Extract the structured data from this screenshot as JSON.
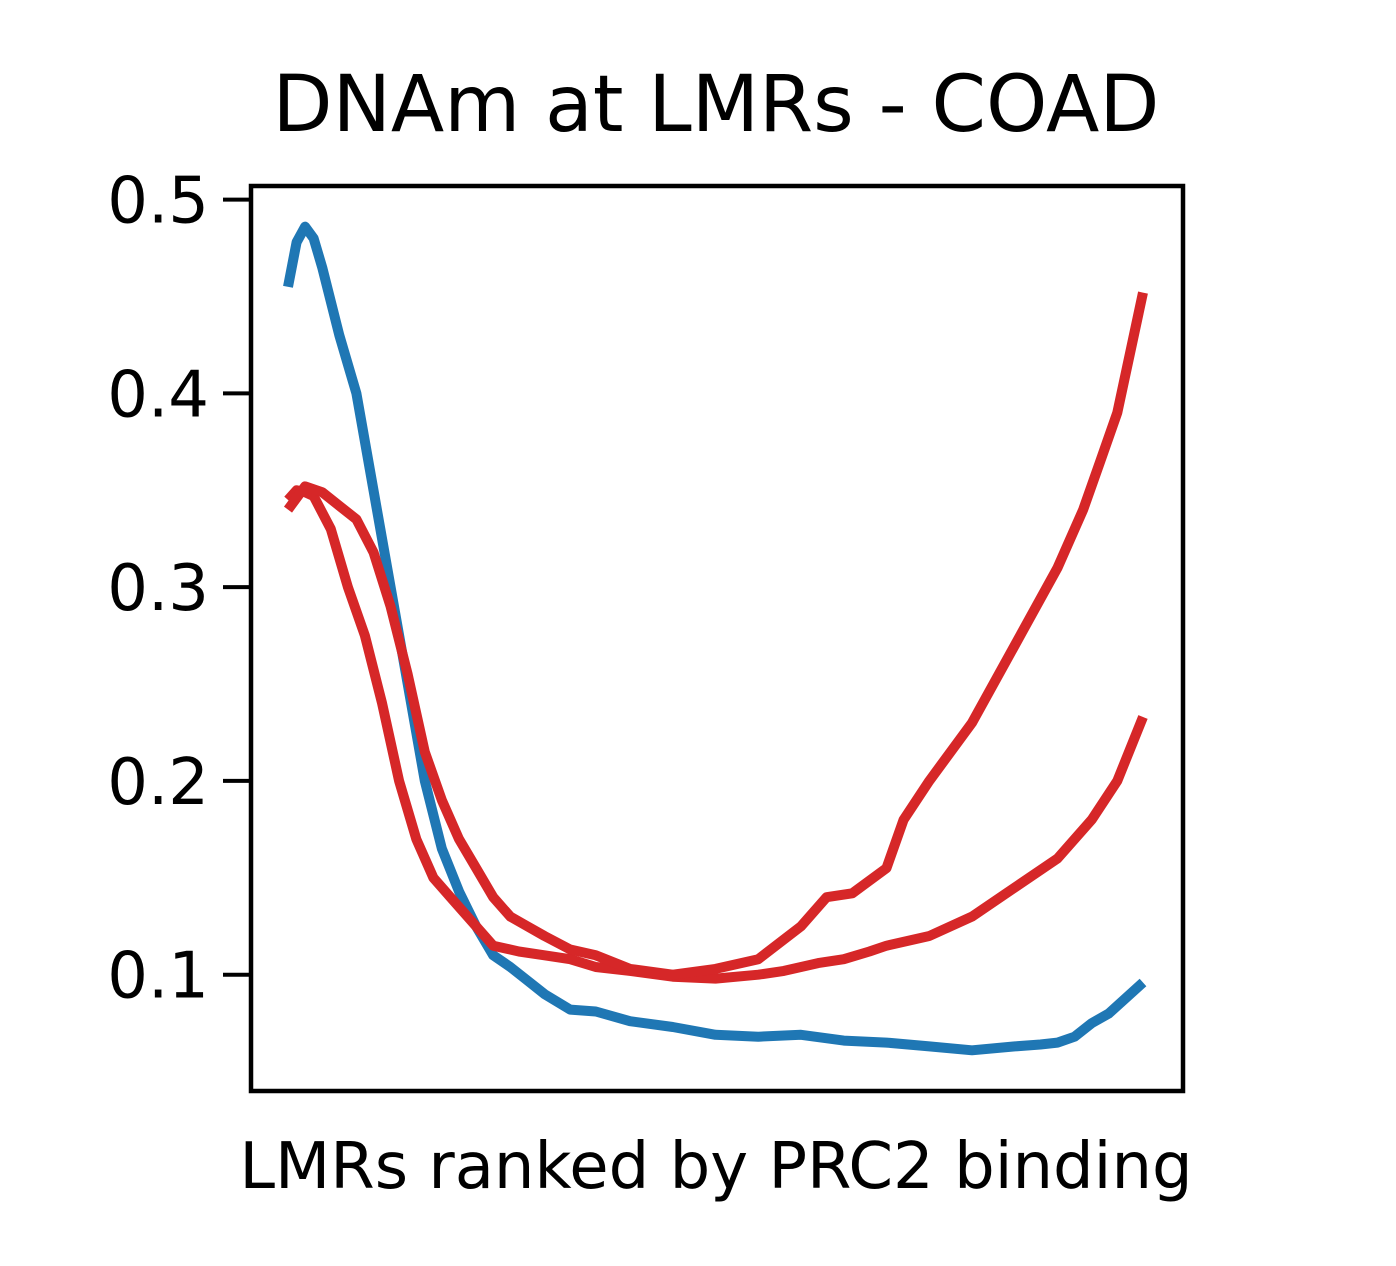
{
  "chart_data": {
    "type": "line",
    "title": "DNAm at LMRs - COAD",
    "xlabel": "LMRs ranked by PRC2 binding",
    "ylabel": "",
    "xlim": [
      0,
      1
    ],
    "ylim": [
      0.04,
      0.507
    ],
    "yticks": [
      0.1,
      0.2,
      0.3,
      0.4,
      0.5
    ],
    "ytick_labels": [
      "0.1",
      "0.2",
      "0.3",
      "0.4",
      "0.5"
    ],
    "xticks_shown": false,
    "grid": false,
    "legend": "none",
    "series": [
      {
        "color": "#1f77b4",
        "x": [
          0.0,
          0.01,
          0.02,
          0.03,
          0.04,
          0.06,
          0.08,
          0.1,
          0.12,
          0.14,
          0.16,
          0.18,
          0.2,
          0.22,
          0.24,
          0.26,
          0.28,
          0.3,
          0.33,
          0.36,
          0.4,
          0.45,
          0.5,
          0.55,
          0.6,
          0.65,
          0.7,
          0.75,
          0.8,
          0.85,
          0.88,
          0.9,
          0.92,
          0.94,
          0.96,
          0.98,
          1.0
        ],
        "y": [
          0.455,
          0.478,
          0.486,
          0.48,
          0.465,
          0.43,
          0.4,
          0.35,
          0.3,
          0.25,
          0.2,
          0.165,
          0.143,
          0.125,
          0.11,
          0.104,
          0.097,
          0.09,
          0.082,
          0.081,
          0.076,
          0.073,
          0.069,
          0.068,
          0.069,
          0.066,
          0.065,
          0.063,
          0.061,
          0.063,
          0.064,
          0.065,
          0.068,
          0.075,
          0.08,
          0.088,
          0.096
        ]
      },
      {
        "color": "#d62728",
        "x": [
          0.0,
          0.01,
          0.02,
          0.03,
          0.05,
          0.07,
          0.09,
          0.11,
          0.13,
          0.15,
          0.17,
          0.19,
          0.21,
          0.24,
          0.27,
          0.3,
          0.33,
          0.36,
          0.4,
          0.45,
          0.5,
          0.55,
          0.58,
          0.6,
          0.62,
          0.65,
          0.68,
          0.7,
          0.75,
          0.8,
          0.85,
          0.9,
          0.94,
          0.97,
          1.0
        ],
        "y": [
          0.345,
          0.35,
          0.349,
          0.347,
          0.33,
          0.3,
          0.275,
          0.24,
          0.2,
          0.17,
          0.15,
          0.14,
          0.13,
          0.115,
          0.112,
          0.11,
          0.108,
          0.104,
          0.102,
          0.099,
          0.098,
          0.1,
          0.102,
          0.104,
          0.106,
          0.108,
          0.112,
          0.115,
          0.12,
          0.13,
          0.145,
          0.16,
          0.18,
          0.2,
          0.233
        ]
      },
      {
        "color": "#d62728",
        "x": [
          0.0,
          0.02,
          0.04,
          0.06,
          0.08,
          0.1,
          0.12,
          0.14,
          0.16,
          0.18,
          0.2,
          0.22,
          0.24,
          0.26,
          0.28,
          0.3,
          0.33,
          0.36,
          0.4,
          0.45,
          0.5,
          0.55,
          0.6,
          0.63,
          0.66,
          0.7,
          0.72,
          0.75,
          0.8,
          0.85,
          0.9,
          0.93,
          0.95,
          0.97,
          1.0
        ],
        "y": [
          0.34,
          0.352,
          0.349,
          0.342,
          0.335,
          0.318,
          0.29,
          0.255,
          0.215,
          0.19,
          0.17,
          0.155,
          0.14,
          0.13,
          0.125,
          0.12,
          0.113,
          0.11,
          0.103,
          0.1,
          0.103,
          0.108,
          0.125,
          0.14,
          0.142,
          0.155,
          0.18,
          0.2,
          0.23,
          0.27,
          0.31,
          0.34,
          0.365,
          0.39,
          0.452
        ]
      }
    ]
  }
}
